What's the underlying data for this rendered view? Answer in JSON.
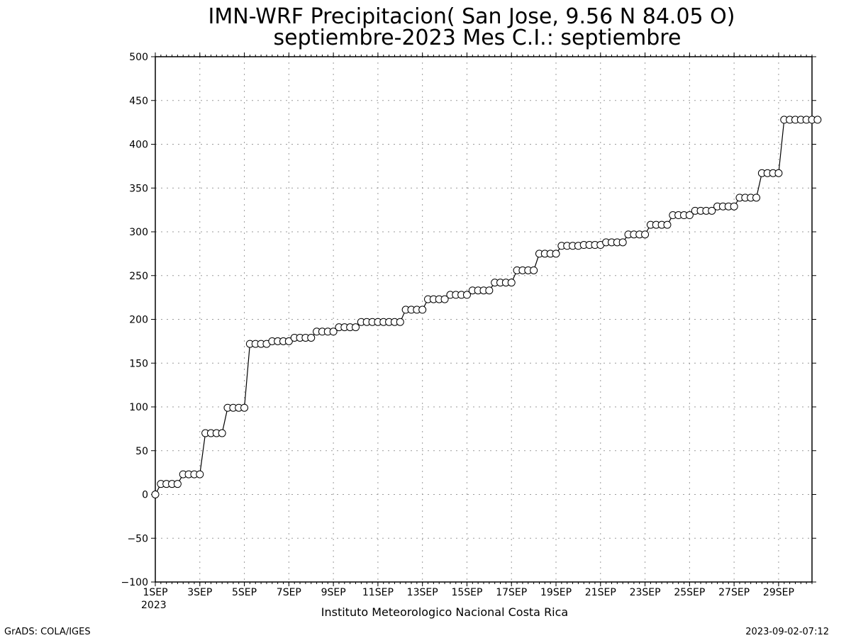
{
  "page": {
    "title_line1": "IMN-WRF  Precipitacion( San Jose, 9.56  N 84.05  O)",
    "title_line2": "septiembre-2023 Mes C.I.: septiembre",
    "footer_center": "Instituto Meteorologico Nacional Costa Rica",
    "footer_left": "GrADS: COLA/IGES",
    "footer_right": "2023-09-02-07:12",
    "x_year_label": "2023"
  },
  "chart_data": {
    "type": "line",
    "title": "IMN-WRF  Precipitacion( San Jose, 9.56  N 84.05  O)",
    "subtitle": "septiembre-2023 Mes C.I.: septiembre",
    "xlabel": "",
    "ylabel": "",
    "xlim": [
      1,
      30.5
    ],
    "ylim": [
      -100,
      500
    ],
    "yticks": [
      -100,
      -50,
      0,
      50,
      100,
      150,
      200,
      250,
      300,
      350,
      400,
      450,
      500
    ],
    "xticks": [
      {
        "day": 1,
        "label": "1SEP"
      },
      {
        "day": 3,
        "label": "3SEP"
      },
      {
        "day": 5,
        "label": "5SEP"
      },
      {
        "day": 7,
        "label": "7SEP"
      },
      {
        "day": 9,
        "label": "9SEP"
      },
      {
        "day": 11,
        "label": "11SEP"
      },
      {
        "day": 13,
        "label": "13SEP"
      },
      {
        "day": 15,
        "label": "15SEP"
      },
      {
        "day": 17,
        "label": "17SEP"
      },
      {
        "day": 19,
        "label": "19SEP"
      },
      {
        "day": 21,
        "label": "21SEP"
      },
      {
        "day": 23,
        "label": "23SEP"
      },
      {
        "day": 25,
        "label": "25SEP"
      },
      {
        "day": 27,
        "label": "27SEP"
      },
      {
        "day": 29,
        "label": "29SEP"
      }
    ],
    "grid": true,
    "marker": "open-circle",
    "line_color": "#000000",
    "interval_hours": 6,
    "series": [
      {
        "daily_values": [
          [
            0,
            12,
            12,
            12
          ],
          [
            12,
            23,
            23,
            23
          ],
          [
            23,
            70,
            70,
            70
          ],
          [
            70,
            99,
            99,
            99
          ],
          [
            99,
            172,
            172,
            172
          ],
          [
            172,
            175,
            175,
            175
          ],
          [
            175,
            179,
            179,
            179
          ],
          [
            179,
            186,
            186,
            186
          ],
          [
            186,
            191,
            191,
            191
          ],
          [
            191,
            197,
            197,
            197
          ],
          [
            197,
            197,
            197,
            197
          ],
          [
            197,
            211,
            211,
            211
          ],
          [
            211,
            223,
            223,
            223
          ],
          [
            223,
            228,
            228,
            228
          ],
          [
            228,
            233,
            233,
            233
          ],
          [
            233,
            242,
            242,
            242
          ],
          [
            242,
            256,
            256,
            256
          ],
          [
            256,
            275,
            275,
            275
          ],
          [
            275,
            284,
            284,
            284
          ],
          [
            284,
            285,
            285,
            285
          ],
          [
            285,
            288,
            288,
            288
          ],
          [
            288,
            297,
            297,
            297
          ],
          [
            297,
            308,
            308,
            308
          ],
          [
            308,
            319,
            319,
            319
          ],
          [
            319,
            324,
            324,
            324
          ],
          [
            324,
            329,
            329,
            329
          ],
          [
            329,
            339,
            339,
            339
          ],
          [
            339,
            367,
            367,
            367
          ],
          [
            367,
            428,
            428,
            428
          ],
          [
            428,
            428,
            428,
            428
          ]
        ]
      }
    ]
  }
}
